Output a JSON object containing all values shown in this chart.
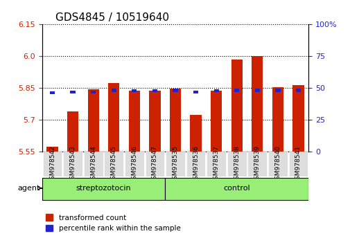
{
  "title": "GDS4845 / 10519640",
  "samples": [
    "GSM978542",
    "GSM978543",
    "GSM978544",
    "GSM978545",
    "GSM978546",
    "GSM978547",
    "GSM978535",
    "GSM978536",
    "GSM978537",
    "GSM978538",
    "GSM978539",
    "GSM978540",
    "GSM978541"
  ],
  "red_values": [
    5.575,
    5.74,
    5.845,
    5.875,
    5.838,
    5.838,
    5.848,
    5.725,
    5.838,
    5.985,
    6.0,
    5.855,
    5.865
  ],
  "blue_values": [
    5.828,
    5.832,
    5.833,
    5.84,
    5.838,
    5.838,
    5.84,
    5.832,
    5.838,
    5.84,
    5.84,
    5.84,
    5.84
  ],
  "blue_pct": [
    40,
    43,
    45,
    47,
    46,
    46,
    46,
    43,
    46,
    47,
    47,
    47,
    47
  ],
  "ymin": 5.55,
  "ymax": 6.15,
  "yticks_left": [
    5.55,
    5.7,
    5.85,
    6.0,
    6.15
  ],
  "yticks_right_vals": [
    0,
    25,
    50,
    75,
    100
  ],
  "yticks_right_labels": [
    "0",
    "25",
    "50",
    "75",
    "100%"
  ],
  "group1_label": "streptozotocin",
  "group2_label": "control",
  "group1_count": 6,
  "group2_count": 7,
  "legend_red_label": "transformed count",
  "legend_blue_label": "percentile rank within the sample",
  "agent_label": "agent",
  "bar_color_red": "#CC2200",
  "bar_color_blue": "#2222CC",
  "group1_bg": "#99EE77",
  "group2_bg": "#99EE77",
  "title_fontsize": 11,
  "axis_color_left": "#CC2200",
  "axis_color_right": "#2222CC"
}
